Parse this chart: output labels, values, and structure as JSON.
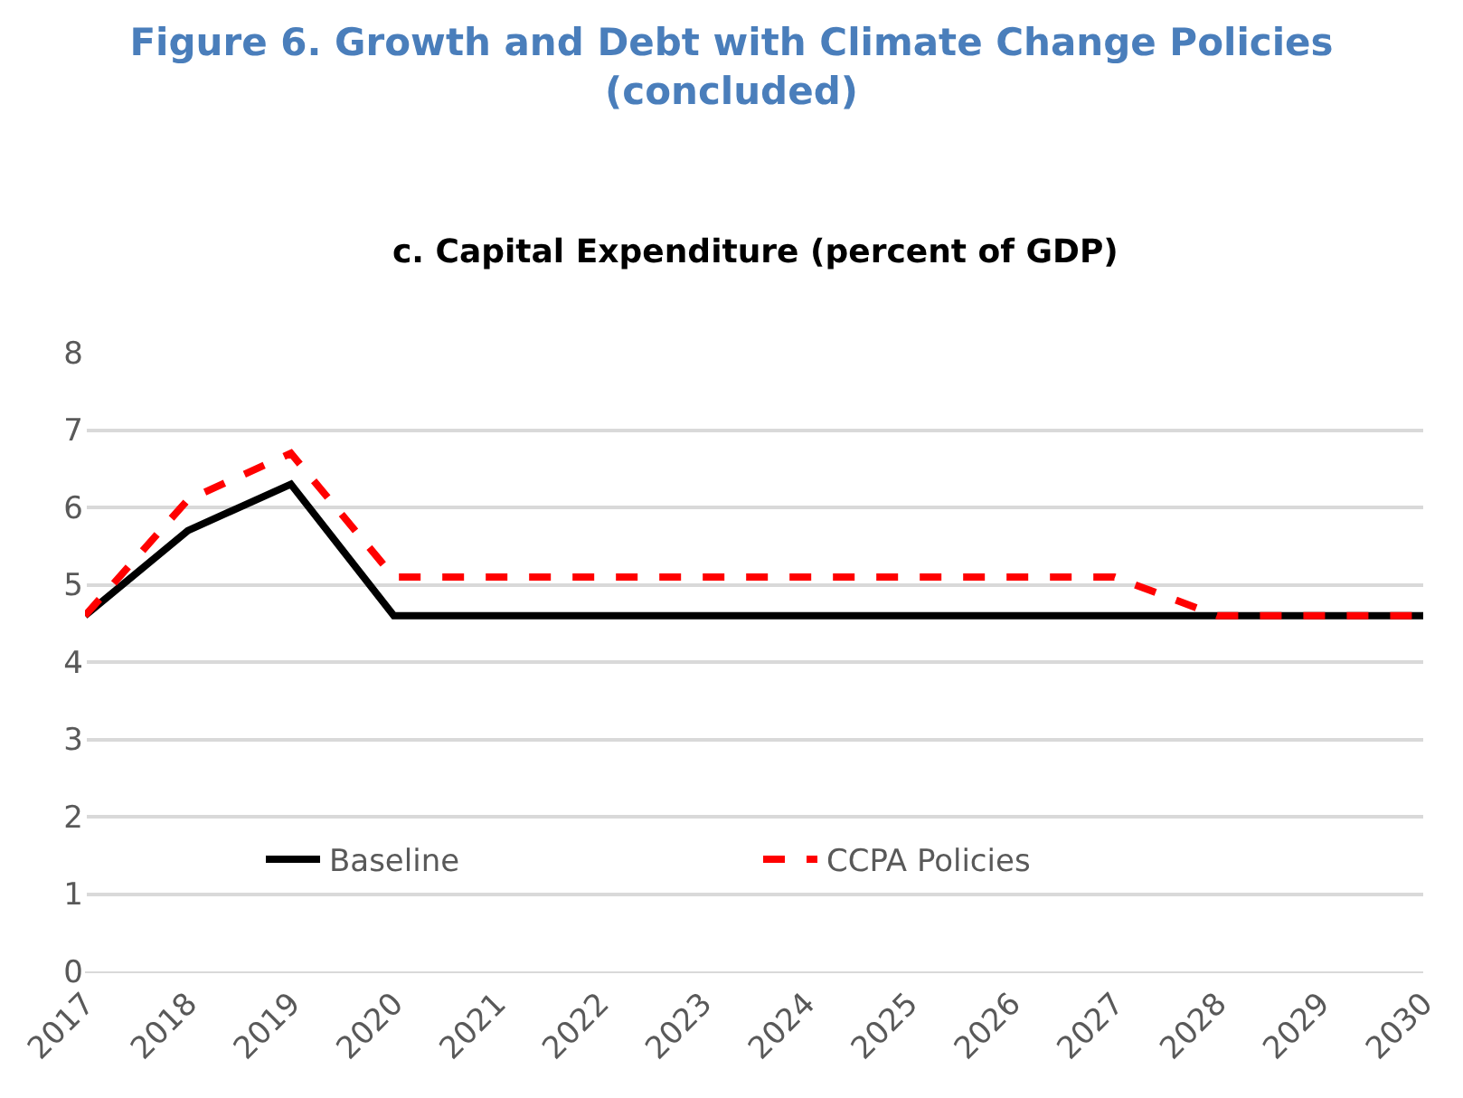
{
  "chart_data": {
    "type": "line",
    "title": "Figure 6. Growth and Debt with Climate Change Policies (concluded)",
    "subtitle": "c. Capital Expenditure (percent of GDP)",
    "categories": [
      "2017",
      "2018",
      "2019",
      "2020",
      "2021",
      "2022",
      "2023",
      "2024",
      "2025",
      "2026",
      "2027",
      "2028",
      "2029",
      "2030"
    ],
    "series": [
      {
        "name": "Baseline",
        "color": "#000000",
        "line_style": "solid",
        "values": [
          4.6,
          5.7,
          6.3,
          4.6,
          4.6,
          4.6,
          4.6,
          4.6,
          4.6,
          4.6,
          4.6,
          4.6,
          4.6,
          4.6
        ]
      },
      {
        "name": "CCPA Policies",
        "color": "#ff0000",
        "line_style": "dashed",
        "values": [
          4.6,
          6.1,
          6.7,
          5.1,
          5.1,
          5.1,
          5.1,
          5.1,
          5.1,
          5.1,
          5.1,
          4.6,
          4.6,
          4.6
        ]
      }
    ],
    "ylim": [
      0,
      8
    ],
    "yticks": [
      0,
      1,
      2,
      3,
      4,
      5,
      6,
      7,
      8
    ],
    "grid": "y",
    "legend": "bottom",
    "marker": "none"
  }
}
